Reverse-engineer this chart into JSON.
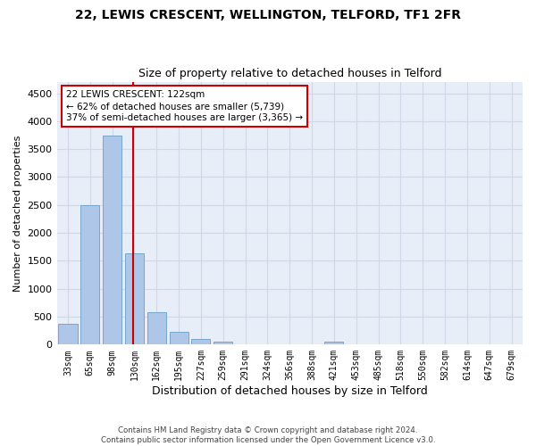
{
  "title1": "22, LEWIS CRESCENT, WELLINGTON, TELFORD, TF1 2FR",
  "title2": "Size of property relative to detached houses in Telford",
  "xlabel": "Distribution of detached houses by size in Telford",
  "ylabel": "Number of detached properties",
  "categories": [
    "33sqm",
    "65sqm",
    "98sqm",
    "130sqm",
    "162sqm",
    "195sqm",
    "227sqm",
    "259sqm",
    "291sqm",
    "324sqm",
    "356sqm",
    "388sqm",
    "421sqm",
    "453sqm",
    "485sqm",
    "518sqm",
    "550sqm",
    "582sqm",
    "614sqm",
    "647sqm",
    "679sqm"
  ],
  "values": [
    370,
    2500,
    3750,
    1640,
    580,
    230,
    105,
    60,
    0,
    0,
    0,
    0,
    60,
    0,
    0,
    0,
    0,
    0,
    0,
    0,
    0
  ],
  "bar_color": "#aec6e8",
  "bar_edge_color": "#6a9fc8",
  "vline_color": "#cc0000",
  "vline_x_index": 3,
  "annotation_text": "22 LEWIS CRESCENT: 122sqm\n← 62% of detached houses are smaller (5,739)\n37% of semi-detached houses are larger (3,365) →",
  "annotation_box_color": "#cc0000",
  "ylim": [
    0,
    4700
  ],
  "yticks": [
    0,
    500,
    1000,
    1500,
    2000,
    2500,
    3000,
    3500,
    4000,
    4500
  ],
  "grid_color": "#d0d8e8",
  "bg_color": "#e8eef8",
  "footnote": "Contains HM Land Registry data © Crown copyright and database right 2024.\nContains public sector information licensed under the Open Government Licence v3.0."
}
